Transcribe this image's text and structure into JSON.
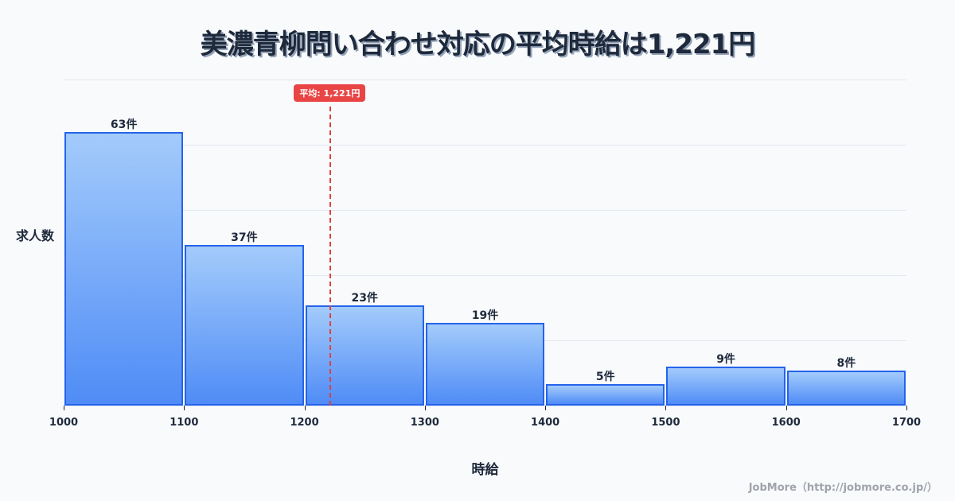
{
  "title": "美濃青柳問い合わせ対応の平均時給は1,221円",
  "avg_badge": "平均: 1,221円",
  "ylabel": "求人数",
  "xlabel": "時給",
  "credit": "JobMore（http://jobmore.co.jp/）",
  "colors": {
    "bar_border": "#2563eb",
    "bar_top": "#a3cbfb",
    "bar_bottom": "#4f8cf6",
    "avg_line": "#e53e3e"
  },
  "chart_data": {
    "type": "bar",
    "title": "美濃青柳問い合わせ対応の平均時給は1,221円",
    "xlabel": "時給",
    "ylabel": "求人数",
    "bins": [
      [
        1000,
        1100
      ],
      [
        1100,
        1200
      ],
      [
        1200,
        1300
      ],
      [
        1300,
        1400
      ],
      [
        1400,
        1500
      ],
      [
        1500,
        1600
      ],
      [
        1600,
        1700
      ]
    ],
    "categories": [
      "1000-1100",
      "1100-1200",
      "1200-1300",
      "1300-1400",
      "1400-1500",
      "1500-1600",
      "1600-1700"
    ],
    "values": [
      63,
      37,
      23,
      19,
      5,
      9,
      8
    ],
    "value_labels": [
      "63件",
      "37件",
      "23件",
      "19件",
      "5件",
      "9件",
      "8件"
    ],
    "x_ticks": [
      1000,
      1100,
      1200,
      1300,
      1400,
      1500,
      1600,
      1700
    ],
    "xlim": [
      1000,
      1700
    ],
    "ylim": [
      0,
      75
    ],
    "grid": true,
    "annotations": [
      {
        "type": "vline",
        "x": 1221,
        "label": "平均: 1,221円"
      }
    ]
  }
}
